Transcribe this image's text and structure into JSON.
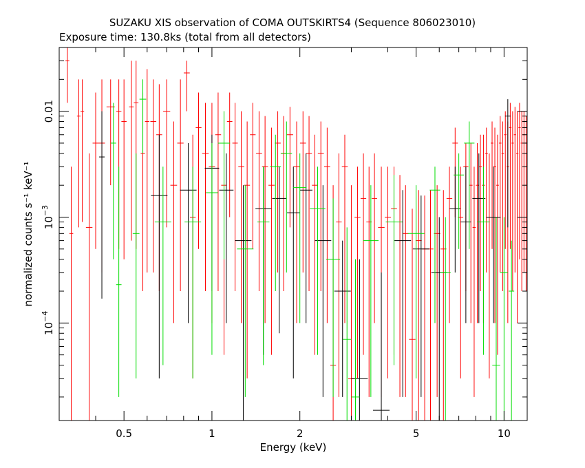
{
  "chart_data": {
    "type": "scatter",
    "title": "SUZAKU XIS observation of COMA OUTSKIRTS4 (Sequence 806023010)",
    "subtitle": "Exposure time: 130.8ks (total from all detectors)",
    "xlabel": "Energy (keV)",
    "ylabel": "normalized counts s⁻¹ keV⁻¹",
    "xscale": "log",
    "yscale": "log",
    "xlim": [
      0.3,
      12
    ],
    "ylim": [
      1.2e-05,
      0.04
    ],
    "grid": false,
    "x_ticks": [
      {
        "value": 0.5,
        "label": "0.5"
      },
      {
        "value": 1,
        "label": "1"
      },
      {
        "value": 2,
        "label": "2"
      },
      {
        "value": 5,
        "label": "5"
      },
      {
        "value": 10,
        "label": "10"
      }
    ],
    "y_ticks": [
      {
        "value": 0.0001,
        "mant": "10",
        "exp": "−4"
      },
      {
        "value": 0.001,
        "mant": "10",
        "exp": "−3"
      },
      {
        "value": 0.01,
        "mant": "0.01",
        "exp": ""
      }
    ],
    "series": [
      {
        "color": "#ff0000",
        "points": [
          [
            0.32,
            0.03,
            0.012,
            0.04
          ],
          [
            0.33,
            0.0007,
            1.2e-05,
            0.003
          ],
          [
            0.35,
            0.009,
            0.0008,
            0.02
          ],
          [
            0.36,
            0.01,
            0.0009,
            0.02
          ],
          [
            0.38,
            0.0008,
            1.2e-05,
            0.004
          ],
          [
            0.4,
            0.005,
            0.0005,
            0.015
          ],
          [
            0.42,
            0.005,
            0.0003,
            0.02
          ],
          [
            0.45,
            0.011,
            0.002,
            0.02
          ],
          [
            0.48,
            0.01,
            0.0005,
            0.02
          ],
          [
            0.5,
            0.008,
            0.0004,
            0.02
          ],
          [
            0.53,
            0.011,
            0.0006,
            0.03
          ],
          [
            0.55,
            0.012,
            0.0005,
            0.03
          ],
          [
            0.58,
            0.004,
            0.0002,
            0.015
          ],
          [
            0.6,
            0.008,
            0.0003,
            0.025
          ],
          [
            0.63,
            0.008,
            0.0003,
            0.02
          ],
          [
            0.66,
            0.006,
            0.0002,
            0.018
          ],
          [
            0.7,
            0.01,
            0.0008,
            0.02
          ],
          [
            0.74,
            0.002,
            0.0001,
            0.008
          ],
          [
            0.78,
            0.005,
            0.0002,
            0.02
          ],
          [
            0.82,
            0.023,
            0.01,
            0.03
          ],
          [
            0.86,
            0.001,
            3e-05,
            0.006
          ],
          [
            0.9,
            0.007,
            0.0005,
            0.015
          ],
          [
            0.95,
            0.004,
            0.0002,
            0.012
          ],
          [
            1.0,
            0.003,
            0.0001,
            0.012
          ],
          [
            1.05,
            0.006,
            0.0002,
            0.015
          ],
          [
            1.1,
            0.002,
            5e-05,
            0.01
          ],
          [
            1.15,
            0.008,
            0.001,
            0.015
          ],
          [
            1.2,
            0.005,
            0.0002,
            0.012
          ],
          [
            1.26,
            0.003,
            0.0001,
            0.01
          ],
          [
            1.32,
            0.002,
            3e-05,
            0.008
          ],
          [
            1.38,
            0.006,
            0.0005,
            0.012
          ],
          [
            1.45,
            0.004,
            0.0002,
            0.01
          ],
          [
            1.52,
            0.003,
            0.0001,
            0.009
          ],
          [
            1.6,
            0.002,
            5e-05,
            0.007
          ],
          [
            1.68,
            0.005,
            0.0003,
            0.01
          ],
          [
            1.76,
            0.004,
            0.0002,
            0.009
          ],
          [
            1.85,
            0.006,
            0.0008,
            0.011
          ],
          [
            1.95,
            0.003,
            0.0001,
            0.008
          ],
          [
            2.05,
            0.005,
            0.0003,
            0.01
          ],
          [
            2.15,
            0.004,
            0.0002,
            0.009
          ],
          [
            2.25,
            0.002,
            5e-05,
            0.006
          ],
          [
            2.36,
            0.004,
            0.0002,
            0.008
          ],
          [
            2.48,
            0.003,
            0.0001,
            0.007
          ],
          [
            2.6,
            4e-05,
            1.2e-05,
            0.002
          ],
          [
            2.72,
            0.0009,
            2e-05,
            0.004
          ],
          [
            2.85,
            0.003,
            0.0001,
            0.006
          ],
          [
            3.0,
            3e-05,
            1.2e-05,
            0.002
          ],
          [
            3.15,
            0.001,
            3e-05,
            0.003
          ],
          [
            3.3,
            0.0015,
            5e-05,
            0.004
          ],
          [
            3.45,
            0.0009,
            2e-05,
            0.003
          ],
          [
            3.6,
            0.0015,
            0.0001,
            0.004
          ],
          [
            3.8,
            0.0008,
            2e-05,
            0.003
          ],
          [
            4.0,
            0.001,
            3e-05,
            0.003
          ],
          [
            4.2,
            0.0012,
            5e-05,
            0.003
          ],
          [
            4.4,
            0.0009,
            2e-05,
            0.0025
          ],
          [
            4.6,
            0.0007,
            2e-05,
            0.002
          ],
          [
            4.85,
            7e-05,
            1.2e-05,
            0.0012
          ],
          [
            5.1,
            0.0006,
            1e-05,
            0.0018
          ],
          [
            5.35,
            0.0005,
            1e-05,
            0.0016
          ],
          [
            5.6,
            0.0005,
            1e-05,
            0.0018
          ],
          [
            5.9,
            0.0007,
            2e-05,
            0.002
          ],
          [
            6.2,
            0.0005,
            1e-05,
            0.0018
          ],
          [
            6.5,
            0.0015,
            0.0001,
            0.003
          ],
          [
            6.8,
            0.005,
            0.001,
            0.007
          ],
          [
            7.1,
            0.001,
            3e-05,
            0.003
          ],
          [
            7.4,
            0.003,
            0.0002,
            0.005
          ],
          [
            7.7,
            0.002,
            0.0001,
            0.005
          ],
          [
            7.9,
            0.0008,
            2e-05,
            0.003
          ],
          [
            8.1,
            0.002,
            0.0001,
            0.005
          ],
          [
            8.3,
            0.003,
            0.0002,
            0.006
          ],
          [
            8.5,
            0.002,
            0.0001,
            0.006
          ],
          [
            8.7,
            0.004,
            0.0003,
            0.007
          ],
          [
            8.9,
            0.001,
            3e-05,
            0.004
          ],
          [
            9.1,
            0.005,
            0.0005,
            0.008
          ],
          [
            9.3,
            0.003,
            0.0001,
            0.007
          ],
          [
            9.5,
            0.002,
            5e-05,
            0.006
          ],
          [
            9.7,
            0.005,
            0.0003,
            0.009
          ],
          [
            9.9,
            0.004,
            0.0002,
            0.008
          ],
          [
            10.1,
            0.006,
            0.0005,
            0.01
          ],
          [
            10.3,
            0.003,
            0.0001,
            0.008
          ],
          [
            10.5,
            0.007,
            0.0005,
            0.012
          ],
          [
            10.7,
            0.005,
            0.0002,
            0.01
          ],
          [
            10.9,
            0.006,
            0.0003,
            0.011
          ],
          [
            11.1,
            0.004,
            0.0001,
            0.01
          ],
          [
            11.3,
            0.007,
            0.0004,
            0.012
          ],
          [
            11.5,
            0.005,
            0.0002,
            0.01
          ],
          [
            11.7,
            0.006,
            0.0003,
            0.01
          ],
          [
            11.9,
            0.005,
            0.0002,
            0.009
          ]
        ]
      },
      {
        "color": "#000000",
        "points": [
          [
            0.42,
            0.0037,
            0.00017,
            0.01
          ],
          [
            0.66,
            0.0016,
            3e-05,
            0.006
          ],
          [
            0.83,
            0.0018,
            0.0001,
            0.005
          ],
          [
            1.0,
            0.0029,
            0.0002,
            0.006
          ],
          [
            1.12,
            0.0018,
            0.0001,
            0.004
          ],
          [
            1.28,
            0.0006,
            1e-05,
            0.002
          ],
          [
            1.5,
            0.0012,
            5e-05,
            0.003
          ],
          [
            1.7,
            0.0015,
            8e-05,
            0.003
          ],
          [
            1.9,
            0.0011,
            3e-05,
            0.003
          ],
          [
            2.1,
            0.0018,
            0.0001,
            0.004
          ],
          [
            2.4,
            0.0006,
            2e-05,
            0.002
          ],
          [
            2.8,
            0.0002,
            2e-05,
            0.0006
          ],
          [
            3.2,
            3e-05,
            1.2e-05,
            0.0004
          ],
          [
            3.8,
            1.5e-05,
            1.2e-05,
            0.0003
          ],
          [
            4.5,
            0.0006,
            2e-05,
            0.0018
          ],
          [
            5.2,
            0.0005,
            2e-05,
            0.0016
          ],
          [
            6.0,
            0.0003,
            1e-05,
            0.001
          ],
          [
            6.8,
            0.0012,
            0.0003,
            0.003
          ],
          [
            7.4,
            0.0009,
            0.0001,
            0.003
          ],
          [
            8.2,
            0.0015,
            0.0001,
            0.004
          ],
          [
            9.2,
            0.001,
            0.0001,
            0.003
          ],
          [
            10.3,
            0.009,
            0.0008,
            0.013
          ]
        ]
      },
      {
        "color": "#00dd00",
        "points": [
          [
            0.46,
            0.005,
            0.0004,
            0.012
          ],
          [
            0.48,
            0.00023,
            2e-05,
            0.003
          ],
          [
            0.55,
            0.0007,
            3e-05,
            0.004
          ],
          [
            0.58,
            0.013,
            0.004,
            0.02
          ],
          [
            0.68,
            0.0009,
            4e-05,
            0.003
          ],
          [
            0.86,
            0.0009,
            3e-05,
            0.003
          ],
          [
            1.0,
            0.0017,
            5e-05,
            0.005
          ],
          [
            1.1,
            0.005,
            0.0004,
            0.01
          ],
          [
            1.3,
            0.0005,
            2e-05,
            0.002
          ],
          [
            1.5,
            0.0009,
            4e-05,
            0.003
          ],
          [
            1.65,
            0.003,
            0.0002,
            0.006
          ],
          [
            1.8,
            0.004,
            0.0003,
            0.008
          ],
          [
            2.0,
            0.0019,
            0.0001,
            0.004
          ],
          [
            2.3,
            0.0012,
            5e-05,
            0.003
          ],
          [
            2.6,
            0.0004,
            2e-05,
            0.0015
          ],
          [
            2.9,
            7e-05,
            1.2e-05,
            0.0008
          ],
          [
            3.1,
            2e-05,
            1.2e-05,
            0.0004
          ],
          [
            3.5,
            0.0006,
            2e-05,
            0.002
          ],
          [
            4.2,
            0.0009,
            4e-05,
            0.0025
          ],
          [
            5.0,
            0.0007,
            3e-05,
            0.002
          ],
          [
            5.8,
            0.0018,
            0.0001,
            0.003
          ],
          [
            6.3,
            0.0003,
            1e-05,
            0.001
          ],
          [
            7.0,
            0.0025,
            0.0005,
            0.004
          ],
          [
            7.6,
            0.005,
            0.0005,
            0.008
          ],
          [
            8.5,
            0.0009,
            5e-05,
            0.003
          ],
          [
            9.4,
            4e-05,
            1.2e-05,
            0.001
          ],
          [
            10.0,
            0.0003,
            1e-05,
            0.001
          ],
          [
            10.6,
            0.0002,
            1e-05,
            0.0006
          ]
        ]
      }
    ]
  }
}
